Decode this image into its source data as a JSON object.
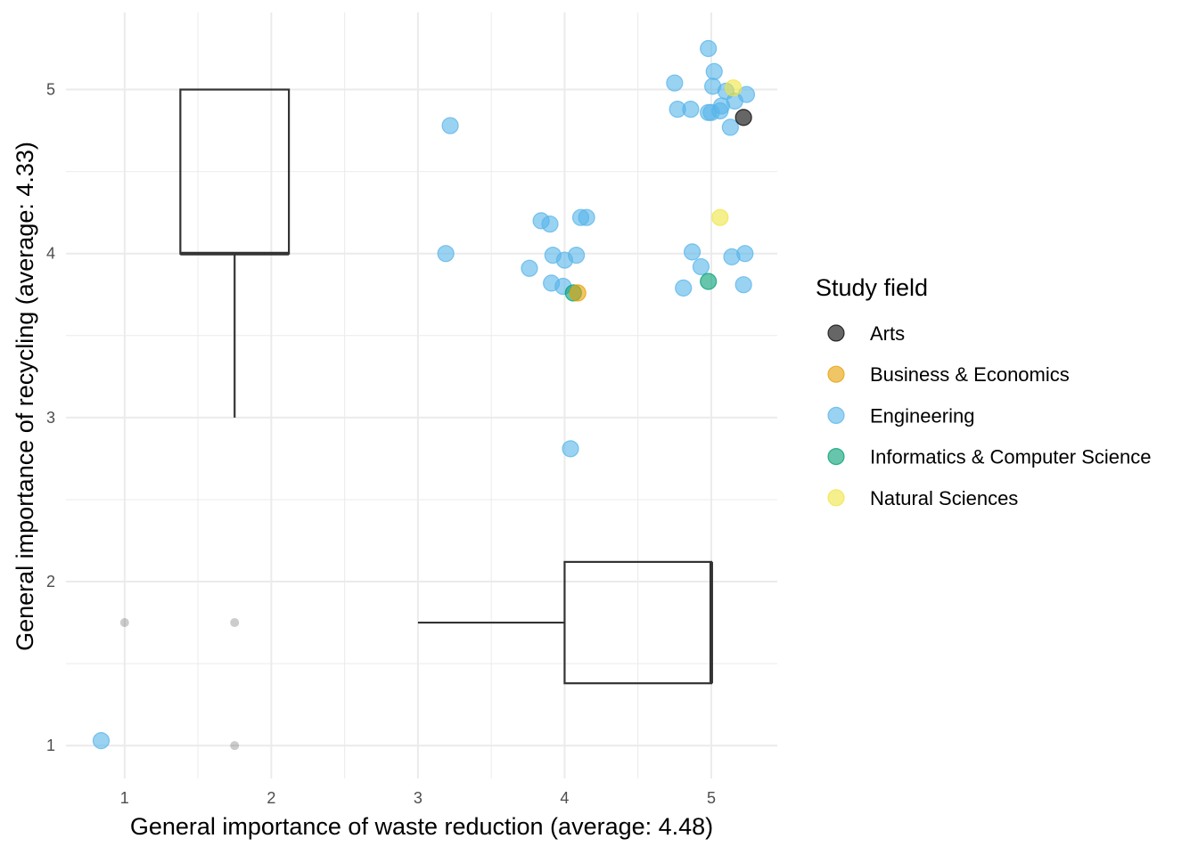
{
  "chart_data": {
    "type": "scatter",
    "xlabel": "General importance of waste reduction (average: 4.48)",
    "ylabel": "General importance of recycling (average: 4.33)",
    "xlim": [
      0.6,
      5.45
    ],
    "ylim": [
      0.8,
      5.47
    ],
    "x_ticks": [
      "1",
      "2",
      "3",
      "4",
      "5"
    ],
    "y_ticks": [
      "1",
      "2",
      "3",
      "4",
      "5"
    ],
    "grid": true,
    "legend": {
      "title": "Study field",
      "position": "right",
      "entries": [
        {
          "name": "Arts",
          "color": "#000000"
        },
        {
          "name": "Business & Economics",
          "color": "#E69F00"
        },
        {
          "name": "Engineering",
          "color": "#56B4E9"
        },
        {
          "name": "Informatics & Computer Science",
          "color": "#009E73"
        },
        {
          "name": "Natural Sciences",
          "color": "#F0E442"
        }
      ]
    },
    "series": [
      {
        "name": "Engineering",
        "color": "#56B4E9",
        "points": [
          [
            4.98,
            5.25
          ],
          [
            5.02,
            5.11
          ],
          [
            4.75,
            5.04
          ],
          [
            5.01,
            5.02
          ],
          [
            5.1,
            4.99
          ],
          [
            5.24,
            4.97
          ],
          [
            5.16,
            4.93
          ],
          [
            5.07,
            4.9
          ],
          [
            4.77,
            4.88
          ],
          [
            4.86,
            4.88
          ],
          [
            5.06,
            4.87
          ],
          [
            4.98,
            4.86
          ],
          [
            5.0,
            4.86
          ],
          [
            5.13,
            4.77
          ],
          [
            3.22,
            4.78
          ],
          [
            4.11,
            4.22
          ],
          [
            4.15,
            4.22
          ],
          [
            3.84,
            4.2
          ],
          [
            3.9,
            4.18
          ],
          [
            3.19,
            4.0
          ],
          [
            3.92,
            3.99
          ],
          [
            4.08,
            3.99
          ],
          [
            4.0,
            3.96
          ],
          [
            3.76,
            3.91
          ],
          [
            4.87,
            4.01
          ],
          [
            5.23,
            4.0
          ],
          [
            5.14,
            3.98
          ],
          [
            4.93,
            3.92
          ],
          [
            3.91,
            3.82
          ],
          [
            3.99,
            3.8
          ],
          [
            5.22,
            3.81
          ],
          [
            4.81,
            3.79
          ],
          [
            4.04,
            2.81
          ],
          [
            0.84,
            1.03
          ]
        ]
      },
      {
        "name": "Natural Sciences",
        "color": "#F0E442",
        "points": [
          [
            5.15,
            5.01
          ],
          [
            5.06,
            4.22
          ]
        ]
      },
      {
        "name": "Arts",
        "color": "#000000",
        "points": [
          [
            5.22,
            4.83
          ]
        ]
      },
      {
        "name": "Informatics & Computer Science",
        "color": "#009E73",
        "points": [
          [
            4.98,
            3.83
          ],
          [
            4.06,
            3.76
          ]
        ]
      },
      {
        "name": "Business & Economics",
        "color": "#E69F00",
        "points": [
          [
            4.09,
            3.76
          ]
        ]
      }
    ],
    "boxplots": [
      {
        "orientation": "vertical",
        "x": 1.75,
        "box_left": 1.38,
        "box_right": 2.12,
        "lower_whisker": 3,
        "q1": 4,
        "median": 4,
        "q3": 5,
        "upper_whisker": 5,
        "outliers": [
          1.75,
          1
        ]
      },
      {
        "orientation": "horizontal",
        "y": 1.75,
        "box_bottom": 1.38,
        "box_top": 2.12,
        "lower_whisker": 3,
        "q1": 4,
        "median": 5,
        "q3": 5,
        "upper_whisker": 5,
        "outliers": [
          1
        ]
      }
    ]
  }
}
